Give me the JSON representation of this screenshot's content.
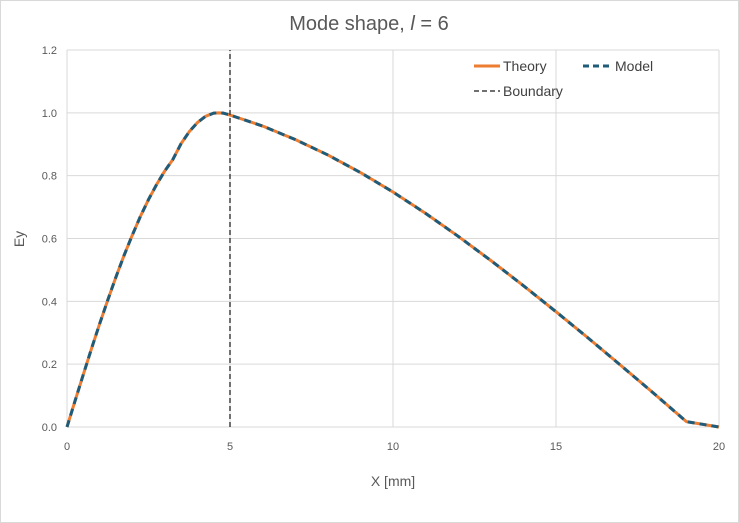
{
  "chart_data": {
    "type": "line",
    "title": "Mode shape, l = 6",
    "title_parts": {
      "prefix": "Mode shape, ",
      "italic": "l",
      "suffix": " = 6"
    },
    "xlabel": "X [mm]",
    "ylabel": "Ey",
    "xlim": [
      0,
      20
    ],
    "ylim": [
      0,
      1.2
    ],
    "xticks": [
      0,
      5,
      10,
      15,
      20
    ],
    "yticks": [
      0.0,
      0.2,
      0.4,
      0.6,
      0.8,
      1.0,
      1.2
    ],
    "ytick_labels": [
      "0.0",
      "0.2",
      "0.4",
      "0.6",
      "0.8",
      "1.0",
      "1.2"
    ],
    "grid": true,
    "legend_position": "top-right",
    "boundary_x": 5,
    "series": [
      {
        "name": "Theory",
        "style": "solid",
        "color": "#ED7D31",
        "x": [
          0,
          0.25,
          0.5,
          0.75,
          1.0,
          1.25,
          1.5,
          1.75,
          2.0,
          2.25,
          2.5,
          2.75,
          3.0,
          3.25,
          3.5,
          3.75,
          4.0,
          4.25,
          4.5,
          4.65,
          4.8,
          5.0,
          6,
          7,
          8,
          9,
          10,
          11,
          12,
          13,
          14,
          15,
          16,
          17,
          18,
          19,
          20
        ],
        "y": [
          0.0,
          0.084,
          0.167,
          0.249,
          0.328,
          0.404,
          0.477,
          0.546,
          0.61,
          0.67,
          0.724,
          0.772,
          0.815,
          0.852,
          0.902,
          0.94,
          0.969,
          0.989,
          0.999,
          1.0,
          0.999,
          0.993,
          0.958,
          0.915,
          0.866,
          0.81,
          0.748,
          0.68,
          0.607,
          0.53,
          0.45,
          0.367,
          0.282,
          0.195,
          0.107,
          0.017,
          0.0
        ]
      },
      {
        "name": "Model",
        "style": "dashed",
        "color": "#1F5C7A",
        "x": [
          0,
          0.25,
          0.5,
          0.75,
          1.0,
          1.25,
          1.5,
          1.75,
          2.0,
          2.25,
          2.5,
          2.75,
          3.0,
          3.25,
          3.5,
          3.75,
          4.0,
          4.25,
          4.5,
          4.65,
          4.8,
          5.0,
          6,
          7,
          8,
          9,
          10,
          11,
          12,
          13,
          14,
          15,
          16,
          17,
          18,
          19,
          20
        ],
        "y": [
          0.0,
          0.084,
          0.167,
          0.249,
          0.328,
          0.404,
          0.477,
          0.546,
          0.61,
          0.67,
          0.724,
          0.772,
          0.815,
          0.852,
          0.902,
          0.94,
          0.969,
          0.989,
          0.999,
          1.0,
          0.999,
          0.993,
          0.958,
          0.915,
          0.866,
          0.81,
          0.748,
          0.68,
          0.607,
          0.53,
          0.45,
          0.367,
          0.282,
          0.195,
          0.107,
          0.017,
          0.0
        ]
      },
      {
        "name": "Boundary",
        "style": "dashed",
        "color": "#404040",
        "x": [
          5,
          5
        ],
        "y": [
          0,
          1.2
        ]
      }
    ]
  }
}
